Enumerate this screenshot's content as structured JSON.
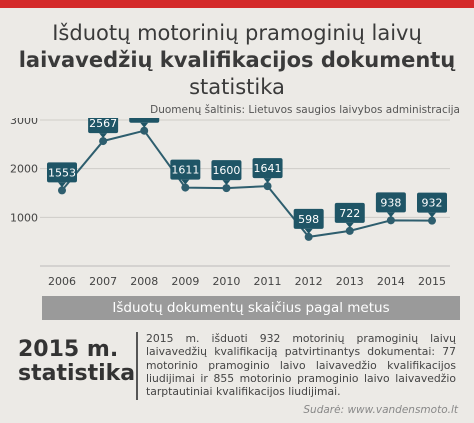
{
  "title": {
    "line1": "Išduotų motorinių pramoginių laivų",
    "line2": "laivavedžių kvalifikacijos dokumentų",
    "line3": "statistika"
  },
  "source": "Duomenų šaltinis: Lietuvos saugios laivybos administracija",
  "chart_data": {
    "type": "line",
    "x": [
      "2006",
      "2007",
      "2008",
      "2009",
      "2010",
      "2011",
      "2012",
      "2013",
      "2014",
      "2015"
    ],
    "values": [
      1553,
      2567,
      2780,
      1611,
      1600,
      1641,
      598,
      722,
      938,
      932
    ],
    "yticks": [
      "1000",
      "2000",
      "3000"
    ],
    "ylim": [
      0,
      3000
    ],
    "grid": true,
    "colors": {
      "line": "#2e5e6e",
      "label_bg": "#1f5566",
      "label_text": "#ffffff"
    }
  },
  "band_title": "Išduotų dokumentų skaičius pagal metus",
  "stats": {
    "title_line1": "2015 m.",
    "title_line2": "statistika",
    "text": "2015 m. išduoti 932 motorinių pramoginių laivų laivavedžių kvalifikaciją patvirtinantys dokumentai: 77 motorinio pramoginio laivo laivavedžio kvalifikacijos liudijimai ir 855 motorinio pramoginio laivo laivavedžio tarptautiniai kvalifikacijos liudijimai."
  },
  "credit": "Sudarė: www.vandensmoto.lt",
  "colors": {
    "accent": "#d42a2a",
    "band": "#9a9a9a",
    "background": "#eceae6"
  }
}
